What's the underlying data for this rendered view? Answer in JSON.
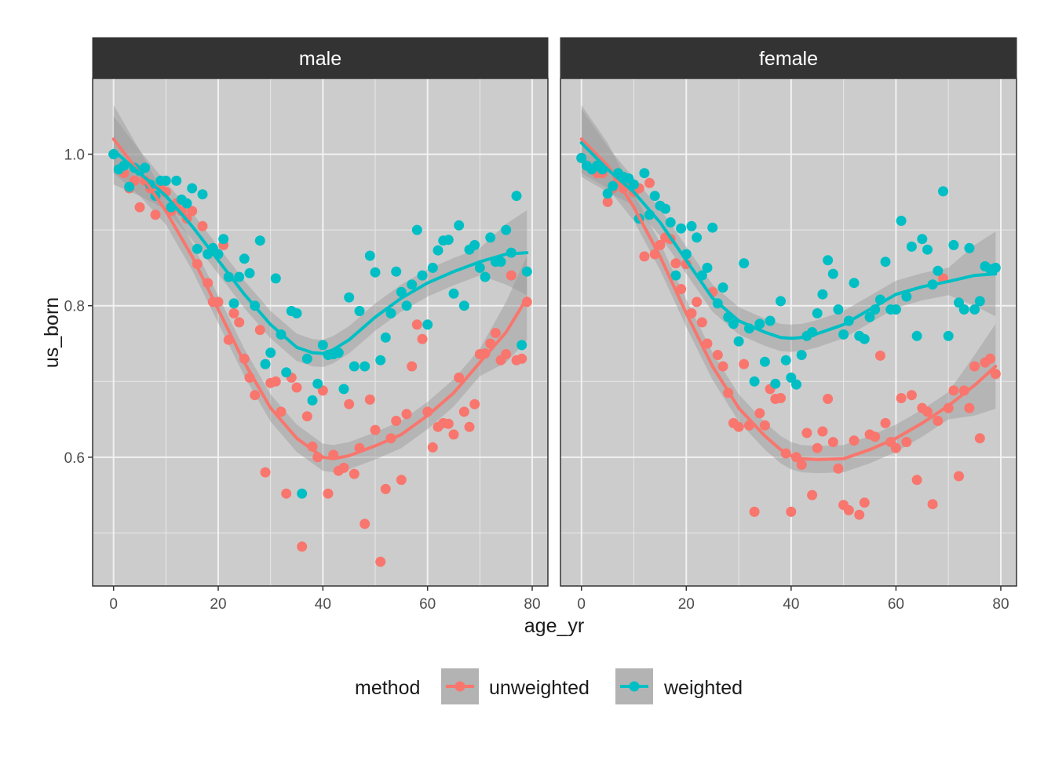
{
  "chart_data": {
    "type": "scatter",
    "xlabel": "age_yr",
    "ylabel": "us_born",
    "xlim": [
      -4,
      83
    ],
    "ylim": [
      0.43,
      1.1
    ],
    "x_ticks": [
      0,
      20,
      40,
      60,
      80
    ],
    "x_tick_labels": [
      "0",
      "20",
      "40",
      "60",
      "80"
    ],
    "y_ticks": [
      0.6,
      0.8,
      1.0
    ],
    "y_tick_labels": [
      "0.6",
      "0.8",
      "1.0"
    ],
    "y_minor_ticks": [
      0.5,
      0.7,
      0.9
    ],
    "grid": true,
    "legend": {
      "title": "method",
      "position": "bottom",
      "entries": [
        {
          "label": "unweighted",
          "color": "#F8766D"
        },
        {
          "label": "weighted",
          "color": "#00BFC4"
        }
      ]
    },
    "panels": [
      {
        "name": "male",
        "series": [
          {
            "name": "unweighted",
            "color": "#F8766D",
            "x": [
              0,
              1,
              2,
              3,
              4,
              5,
              6,
              7,
              8,
              9,
              10,
              11,
              12,
              13,
              14,
              15,
              16,
              17,
              18,
              19,
              20,
              21,
              22,
              23,
              24,
              25,
              26,
              27,
              28,
              29,
              30,
              31,
              32,
              33,
              34,
              35,
              36,
              37,
              38,
              39,
              40,
              41,
              42,
              43,
              44,
              45,
              46,
              47,
              48,
              49,
              50,
              51,
              52,
              53,
              54,
              55,
              56,
              57,
              58,
              59,
              60,
              61,
              62,
              63,
              64,
              65,
              66,
              67,
              68,
              69,
              70,
              71,
              72,
              73,
              74,
              75,
              76,
              77,
              78,
              79
            ],
            "y": [
              1.0,
              0.98,
              0.975,
              0.955,
              0.965,
              0.93,
              0.965,
              0.955,
              0.92,
              0.96,
              0.95,
              0.925,
              0.935,
              0.925,
              0.915,
              0.925,
              0.855,
              0.905,
              0.83,
              0.805,
              0.805,
              0.88,
              0.755,
              0.79,
              0.778,
              0.73,
              0.705,
              0.682,
              0.768,
              0.58,
              0.698,
              0.7,
              0.66,
              0.552,
              0.705,
              0.692,
              0.482,
              0.654,
              0.614,
              0.6,
              0.688,
              0.552,
              0.603,
              0.582,
              0.586,
              0.67,
              0.578,
              0.612,
              0.512,
              0.676,
              0.636,
              0.462,
              0.558,
              0.625,
              0.648,
              0.57,
              0.657,
              0.72,
              0.775,
              0.756,
              0.66,
              0.613,
              0.64,
              0.645,
              0.644,
              0.63,
              0.705,
              0.66,
              0.64,
              0.67,
              0.736,
              0.737,
              0.75,
              0.764,
              0.728,
              0.736,
              0.84,
              0.728,
              0.73,
              0.805
            ],
            "smooth_x": [
              0,
              5,
              10,
              15,
              20,
              25,
              30,
              35,
              38,
              40,
              42,
              45,
              50,
              55,
              60,
              65,
              70,
              75,
              79
            ],
            "smooth_y": [
              1.02,
              0.975,
              0.925,
              0.865,
              0.795,
              0.725,
              0.665,
              0.625,
              0.61,
              0.6,
              0.598,
              0.602,
              0.615,
              0.63,
              0.655,
              0.685,
              0.725,
              0.765,
              0.81
            ]
          },
          {
            "name": "weighted",
            "color": "#00BFC4",
            "x": [
              0,
              1,
              2,
              3,
              4,
              5,
              6,
              7,
              8,
              9,
              10,
              11,
              12,
              13,
              14,
              15,
              16,
              17,
              18,
              19,
              20,
              21,
              22,
              23,
              24,
              25,
              26,
              27,
              28,
              29,
              30,
              31,
              32,
              33,
              34,
              35,
              36,
              37,
              38,
              39,
              40,
              41,
              42,
              43,
              44,
              45,
              46,
              47,
              48,
              49,
              50,
              51,
              52,
              53,
              54,
              55,
              56,
              57,
              58,
              59,
              60,
              61,
              62,
              63,
              64,
              65,
              66,
              67,
              68,
              69,
              70,
              71,
              72,
              73,
              74,
              75,
              76,
              77,
              78,
              79
            ],
            "y": [
              1.0,
              0.98,
              0.985,
              0.957,
              0.982,
              0.978,
              0.982,
              0.96,
              0.945,
              0.965,
              0.965,
              0.93,
              0.965,
              0.94,
              0.935,
              0.955,
              0.875,
              0.947,
              0.868,
              0.876,
              0.868,
              0.888,
              0.838,
              0.803,
              0.838,
              0.862,
              0.843,
              0.8,
              0.886,
              0.723,
              0.738,
              0.836,
              0.762,
              0.712,
              0.793,
              0.79,
              0.552,
              0.73,
              0.675,
              0.697,
              0.748,
              0.735,
              0.736,
              0.738,
              0.69,
              0.811,
              0.72,
              0.793,
              0.72,
              0.866,
              0.844,
              0.728,
              0.758,
              0.79,
              0.845,
              0.818,
              0.8,
              0.828,
              0.9,
              0.84,
              0.775,
              0.85,
              0.873,
              0.886,
              0.887,
              0.816,
              0.906,
              0.8,
              0.874,
              0.88,
              0.85,
              0.838,
              0.89,
              0.858,
              0.858,
              0.9,
              0.87,
              0.945,
              0.748,
              0.845
            ],
            "smooth_x": [
              0,
              5,
              10,
              15,
              20,
              25,
              30,
              35,
              38,
              40,
              42,
              45,
              50,
              55,
              60,
              65,
              70,
              75,
              79
            ],
            "smooth_y": [
              1.005,
              0.975,
              0.945,
              0.905,
              0.86,
              0.815,
              0.775,
              0.745,
              0.738,
              0.737,
              0.742,
              0.755,
              0.785,
              0.81,
              0.83,
              0.845,
              0.858,
              0.868,
              0.87
            ]
          }
        ]
      },
      {
        "name": "female",
        "series": [
          {
            "name": "unweighted",
            "color": "#F8766D",
            "x": [
              0,
              1,
              2,
              3,
              4,
              5,
              6,
              7,
              8,
              9,
              10,
              11,
              12,
              13,
              14,
              15,
              16,
              17,
              18,
              19,
              20,
              21,
              22,
              23,
              24,
              25,
              26,
              27,
              28,
              29,
              30,
              31,
              32,
              33,
              34,
              35,
              36,
              37,
              38,
              39,
              40,
              41,
              42,
              43,
              44,
              45,
              46,
              47,
              48,
              49,
              50,
              51,
              52,
              53,
              54,
              55,
              56,
              57,
              58,
              59,
              60,
              61,
              62,
              63,
              64,
              65,
              66,
              67,
              68,
              69,
              70,
              71,
              72,
              73,
              74,
              75,
              76,
              77,
              78,
              79
            ],
            "y": [
              0.995,
              0.985,
              0.98,
              0.975,
              0.975,
              0.937,
              0.955,
              0.965,
              0.955,
              0.96,
              0.95,
              0.955,
              0.865,
              0.962,
              0.868,
              0.88,
              0.89,
              0.888,
              0.856,
              0.822,
              0.855,
              0.79,
              0.805,
              0.778,
              0.75,
              0.818,
              0.735,
              0.72,
              0.685,
              0.645,
              0.64,
              0.723,
              0.642,
              0.528,
              0.658,
              0.642,
              0.69,
              0.677,
              0.678,
              0.605,
              0.528,
              0.6,
              0.59,
              0.632,
              0.55,
              0.612,
              0.634,
              0.677,
              0.62,
              0.585,
              0.537,
              0.53,
              0.622,
              0.524,
              0.54,
              0.63,
              0.627,
              0.734,
              0.645,
              0.62,
              0.612,
              0.678,
              0.62,
              0.682,
              0.57,
              0.665,
              0.66,
              0.538,
              0.648,
              0.836,
              0.665,
              0.688,
              0.575,
              0.688,
              0.665,
              0.72,
              0.625,
              0.725,
              0.73,
              0.71
            ],
            "smooth_x": [
              0,
              5,
              10,
              15,
              20,
              25,
              30,
              35,
              38,
              40,
              42,
              45,
              50,
              55,
              60,
              65,
              70,
              75,
              79
            ],
            "smooth_y": [
              1.02,
              0.985,
              0.93,
              0.865,
              0.79,
              0.72,
              0.665,
              0.628,
              0.61,
              0.602,
              0.598,
              0.597,
              0.598,
              0.61,
              0.625,
              0.645,
              0.668,
              0.695,
              0.72
            ]
          },
          {
            "name": "weighted",
            "color": "#00BFC4",
            "x": [
              0,
              1,
              2,
              3,
              4,
              5,
              6,
              7,
              8,
              9,
              10,
              11,
              12,
              13,
              14,
              15,
              16,
              17,
              18,
              19,
              20,
              21,
              22,
              23,
              24,
              25,
              26,
              27,
              28,
              29,
              30,
              31,
              32,
              33,
              34,
              35,
              36,
              37,
              38,
              39,
              40,
              41,
              42,
              43,
              44,
              45,
              46,
              47,
              48,
              49,
              50,
              51,
              52,
              53,
              54,
              55,
              56,
              57,
              58,
              59,
              60,
              61,
              62,
              63,
              64,
              65,
              66,
              67,
              68,
              69,
              70,
              71,
              72,
              73,
              74,
              75,
              76,
              77,
              78,
              79
            ],
            "y": [
              0.995,
              0.985,
              0.98,
              0.985,
              0.98,
              0.948,
              0.958,
              0.975,
              0.97,
              0.968,
              0.96,
              0.915,
              0.975,
              0.92,
              0.945,
              0.932,
              0.928,
              0.91,
              0.84,
              0.902,
              0.868,
              0.905,
              0.89,
              0.84,
              0.85,
              0.903,
              0.803,
              0.824,
              0.785,
              0.776,
              0.753,
              0.856,
              0.77,
              0.7,
              0.776,
              0.726,
              0.78,
              0.697,
              0.806,
              0.728,
              0.705,
              0.696,
              0.735,
              0.76,
              0.765,
              0.79,
              0.815,
              0.86,
              0.842,
              0.795,
              0.762,
              0.78,
              0.83,
              0.76,
              0.756,
              0.785,
              0.795,
              0.808,
              0.858,
              0.795,
              0.795,
              0.912,
              0.812,
              0.878,
              0.76,
              0.888,
              0.874,
              0.828,
              0.846,
              0.951,
              0.76,
              0.88,
              0.804,
              0.795,
              0.876,
              0.795,
              0.806,
              0.852,
              0.848,
              0.85
            ],
            "smooth_x": [
              0,
              5,
              10,
              15,
              20,
              25,
              30,
              35,
              38,
              40,
              42,
              45,
              50,
              55,
              60,
              65,
              70,
              75,
              79
            ],
            "smooth_y": [
              1.015,
              0.98,
              0.95,
              0.91,
              0.86,
              0.81,
              0.78,
              0.765,
              0.758,
              0.757,
              0.758,
              0.763,
              0.775,
              0.795,
              0.815,
              0.825,
              0.832,
              0.84,
              0.842
            ]
          }
        ]
      }
    ]
  }
}
